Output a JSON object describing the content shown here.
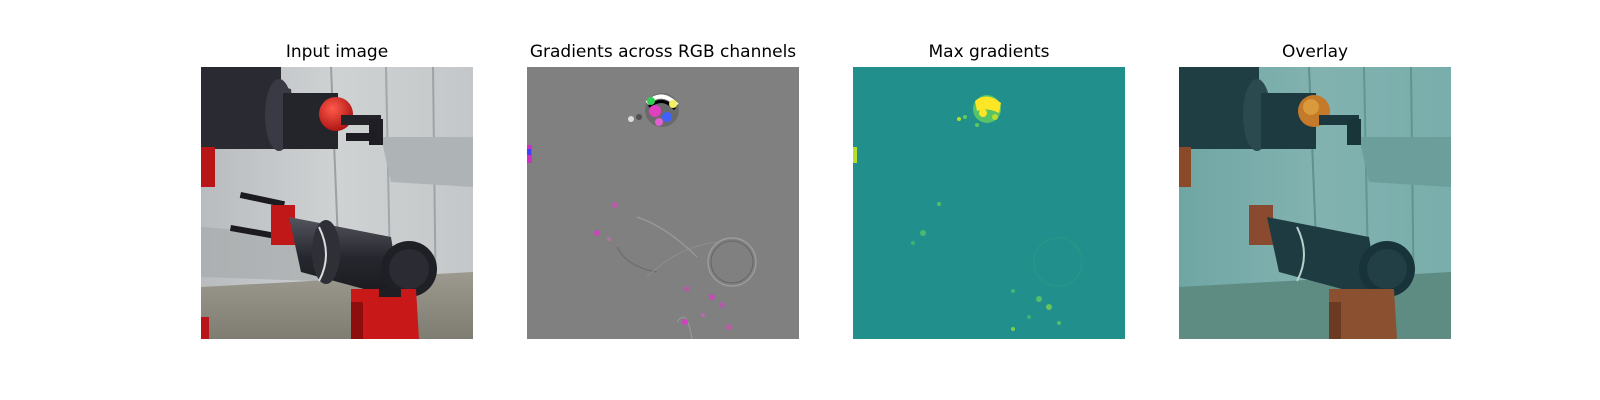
{
  "figure": {
    "panels": [
      {
        "id": "input",
        "title": "Input image"
      },
      {
        "id": "gradients",
        "title": "Gradients across RGB channels"
      },
      {
        "id": "max",
        "title": "Max gradients"
      },
      {
        "id": "overlay",
        "title": "Overlay"
      }
    ]
  },
  "colors": {
    "background": "#ffffff",
    "gradient_gray": "#808080",
    "viridis_teal": "#21908c",
    "viridis_yellow": "#fde725",
    "viridis_green": "#5ec962",
    "magenta": "#e040c0",
    "robot_red": "#c81818",
    "robot_dark": "#2a2a33",
    "overlay_teal": "#4a8f8c"
  }
}
